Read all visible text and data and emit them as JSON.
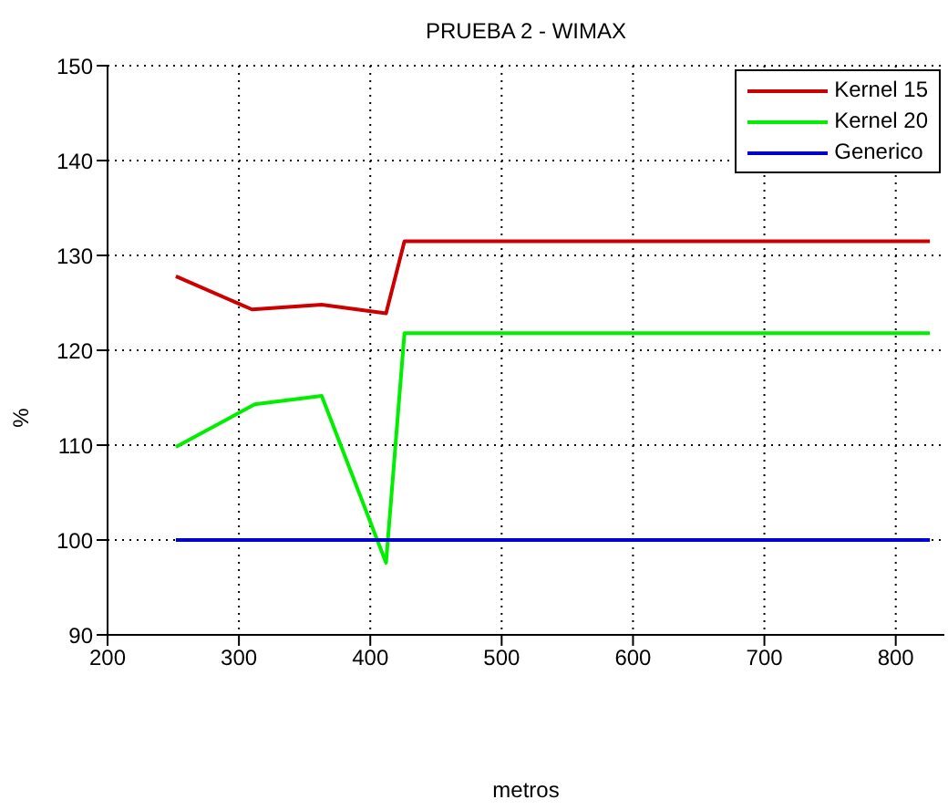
{
  "chart_data": {
    "type": "line",
    "title": "PRUEBA 2 - WIMAX",
    "xlabel": "metros",
    "ylabel": "%",
    "xlim": [
      200,
      837
    ],
    "xticks": [
      200,
      300,
      400,
      500,
      600,
      700,
      800
    ],
    "ylim": [
      90,
      150
    ],
    "yticks": [
      90,
      100,
      110,
      120,
      130,
      140,
      150
    ],
    "grid": true,
    "legend": "top right",
    "line_style": "solid",
    "marker": "none",
    "series": [
      {
        "name": "Kernel 15",
        "color": "#cc0000",
        "x": [
          252,
          310,
          363,
          412,
          426,
          826
        ],
        "values": [
          127.8,
          124.3,
          124.8,
          123.9,
          131.5,
          131.5
        ]
      },
      {
        "name": "Kernel 20",
        "color": "#00ee00",
        "x": [
          252,
          312,
          363,
          412,
          426,
          826
        ],
        "values": [
          109.8,
          114.3,
          115.2,
          97.6,
          121.8,
          121.8
        ]
      },
      {
        "name": "Generico",
        "color": "#0000cc",
        "x": [
          252,
          826
        ],
        "values": [
          100,
          100
        ]
      }
    ]
  }
}
